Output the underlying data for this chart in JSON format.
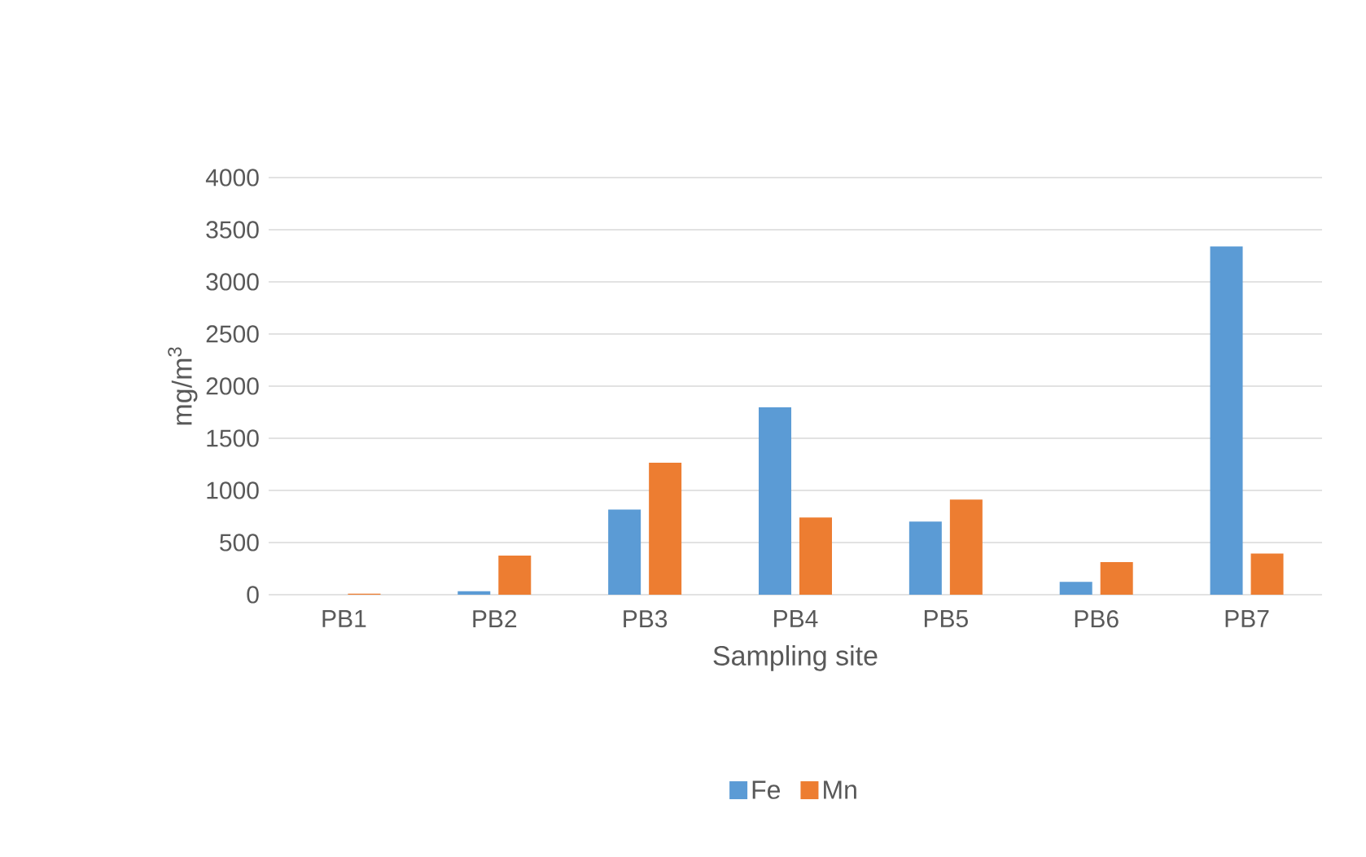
{
  "chart_data": {
    "type": "bar",
    "xlabel": "Sampling site",
    "ylabel": "mg/m$^{3}$",
    "categories": [
      "PB1",
      "PB2",
      "PB3",
      "PB4",
      "PB5",
      "PB6",
      "PB7"
    ],
    "series": [
      {
        "name": "Fe",
        "color": "#5b9bd5",
        "values": [
          0,
          34,
          816,
          1796,
          700,
          122,
          3340
        ]
      },
      {
        "name": "Mn",
        "color": "#ed7d31",
        "values": [
          10,
          374,
          1265,
          741,
          912,
          313,
          395
        ]
      }
    ],
    "ylim": [
      0,
      4000
    ],
    "yticks": [
      0,
      500,
      1000,
      1500,
      2000,
      2500,
      3000,
      3500,
      4000
    ],
    "grid": "y",
    "legend": "bottom"
  }
}
